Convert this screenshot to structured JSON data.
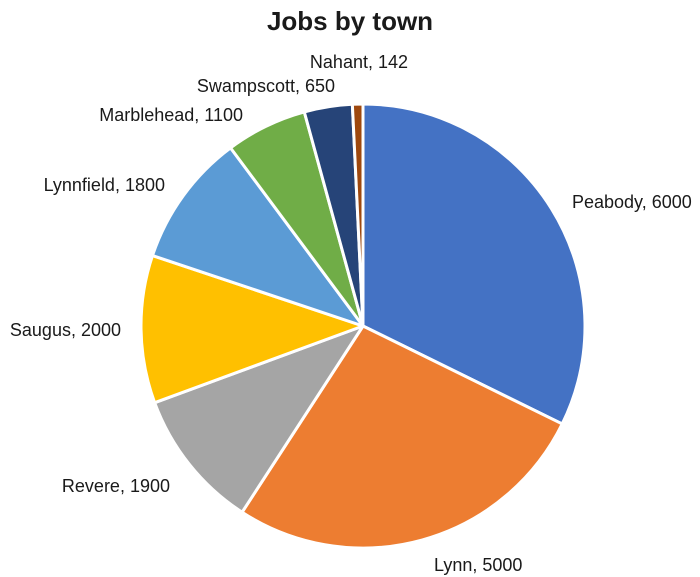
{
  "chart_data": {
    "type": "pie",
    "title": "Jobs by town",
    "slices": [
      {
        "label": "Peabody",
        "value": 6000,
        "color": "#4472C4"
      },
      {
        "label": "Lynn",
        "value": 5000,
        "color": "#ED7D31"
      },
      {
        "label": "Revere",
        "value": 1900,
        "color": "#A5A5A5"
      },
      {
        "label": "Saugus",
        "value": 2000,
        "color": "#FFC000"
      },
      {
        "label": "Lynnfield",
        "value": 1800,
        "color": "#5B9BD5"
      },
      {
        "label": "Marblehead",
        "value": 1100,
        "color": "#70AD47"
      },
      {
        "label": "Swampscott",
        "value": 650,
        "color": "#264478"
      },
      {
        "label": "Nahant",
        "value": 142,
        "color": "#9E480E"
      }
    ],
    "start_at": "12 o'clock",
    "direction": "clockwise",
    "slice_border_color": "#ffffff",
    "legend": "none",
    "data_labels": "category, value"
  }
}
